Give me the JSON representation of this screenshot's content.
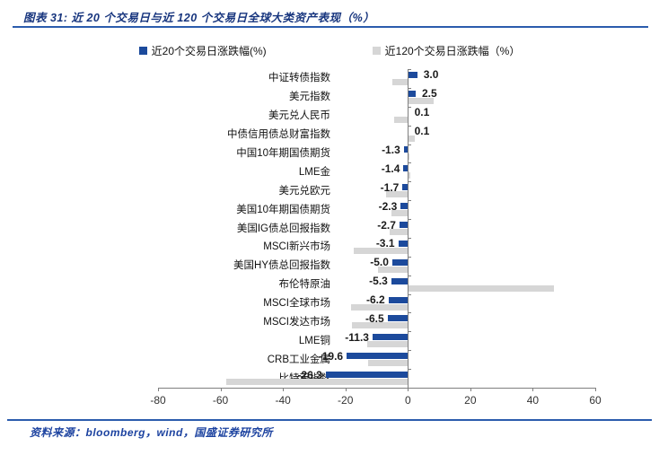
{
  "title": "图表 31:  近 20 个交易日与近 120 个交易日全球大类资产表现（%）",
  "legend": {
    "items": [
      {
        "label": "近20个交易日涨跌幅(%)",
        "color": "#1c4a9c"
      },
      {
        "label": "近120个交易日涨跌幅（%）",
        "color": "#d6d6d6"
      }
    ]
  },
  "footer": {
    "source": "资料来源：bloomberg，wind，国盛证券研究所"
  },
  "chart_data": {
    "type": "bar",
    "orientation": "horizontal",
    "title": "近20个交易日与近120个交易日全球大类资产表现（%）",
    "categories": [
      "中证转债指数",
      "美元指数",
      "美元兑人民币",
      "中债信用债总财富指数",
      "中国10年期国债期货",
      "LME金",
      "美元兑欧元",
      "美国10年期国债期货",
      "美国IG债总回报指数",
      "MSCI新兴市场",
      "美国HY债总回报指数",
      "布伦特原油",
      "MSCI全球市场",
      "MSCI发达市场",
      "LME铜",
      "CRB工业金属",
      "比特币指数"
    ],
    "series": [
      {
        "name": "近20个交易日涨跌幅(%)",
        "color": "#1c4a9c",
        "values": [
          3.0,
          2.5,
          0.1,
          0.1,
          -1.3,
          -1.4,
          -1.7,
          -2.3,
          -2.7,
          -3.1,
          -5.0,
          -5.3,
          -6.2,
          -6.5,
          -11.3,
          -19.6,
          -26.3
        ]
      },
      {
        "name": "近120个交易日涨跌幅（%）",
        "color": "#d6d6d6",
        "values": [
          -5.1,
          8.2,
          -4.5,
          2.2,
          0.6,
          0.9,
          -7.0,
          -5.4,
          -5.8,
          -17.3,
          -9.5,
          46.7,
          -18.2,
          -17.9,
          -13.0,
          -12.8,
          -58.2
        ]
      }
    ],
    "value_labels": [
      "3.0",
      "2.5",
      "0.1",
      "0.1",
      "-1.3",
      "-1.4",
      "-1.7",
      "-2.3",
      "-2.7",
      "-3.1",
      "-5.0",
      "-5.3",
      "-6.2",
      "-6.5",
      "-11.3",
      "-19.6",
      "-26.3"
    ],
    "xlim": [
      -80,
      60
    ],
    "x_ticks": [
      -80,
      -60,
      -40,
      -20,
      0,
      20,
      40,
      60
    ],
    "grid": false,
    "legend_position": "top",
    "value_labels_series": 0
  }
}
